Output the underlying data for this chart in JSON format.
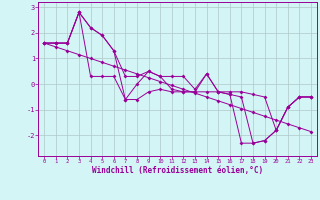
{
  "xlabel": "Windchill (Refroidissement éolien,°C)",
  "hours": [
    0,
    1,
    2,
    3,
    4,
    5,
    6,
    7,
    8,
    9,
    10,
    11,
    12,
    13,
    14,
    15,
    16,
    17,
    18,
    19,
    20,
    21,
    22,
    23
  ],
  "main_values": [
    1.6,
    1.6,
    1.6,
    2.8,
    2.2,
    1.9,
    1.3,
    -0.6,
    0.0,
    0.5,
    0.3,
    -0.2,
    -0.3,
    -0.3,
    0.4,
    -0.3,
    -0.4,
    -0.5,
    -2.3,
    -2.2,
    -1.8,
    -0.9,
    -0.5,
    -0.5
  ],
  "min_values": [
    1.6,
    1.6,
    1.6,
    2.8,
    0.3,
    0.3,
    0.3,
    -0.6,
    -0.6,
    -0.3,
    -0.2,
    -0.3,
    -0.3,
    -0.3,
    -0.3,
    -0.3,
    -0.4,
    -2.3,
    -2.3,
    -2.2,
    -1.8,
    -0.9,
    -0.5,
    -0.5
  ],
  "max_values": [
    1.6,
    1.6,
    1.6,
    2.8,
    2.2,
    1.9,
    1.3,
    0.3,
    0.3,
    0.5,
    0.3,
    0.3,
    0.3,
    -0.2,
    0.4,
    -0.3,
    -0.3,
    -0.3,
    -0.4,
    -0.5,
    -1.8,
    -0.9,
    -0.5,
    -0.5
  ],
  "trend_values": [
    1.6,
    1.45,
    1.3,
    1.15,
    1.0,
    0.85,
    0.7,
    0.55,
    0.4,
    0.25,
    0.1,
    -0.05,
    -0.2,
    -0.35,
    -0.5,
    -0.65,
    -0.8,
    -0.95,
    -1.1,
    -1.25,
    -1.4,
    -1.55,
    -1.7,
    -1.85
  ],
  "line_color": "#990099",
  "bg_color": "#d4f5f5",
  "grid_color": "#b0c8c8",
  "ylim": [
    -2.8,
    3.2
  ],
  "yticks": [
    -2,
    -1,
    0,
    1,
    2,
    3
  ],
  "xticks": [
    0,
    1,
    2,
    3,
    4,
    5,
    6,
    7,
    8,
    9,
    10,
    11,
    12,
    13,
    14,
    15,
    16,
    17,
    18,
    19,
    20,
    21,
    22,
    23
  ]
}
